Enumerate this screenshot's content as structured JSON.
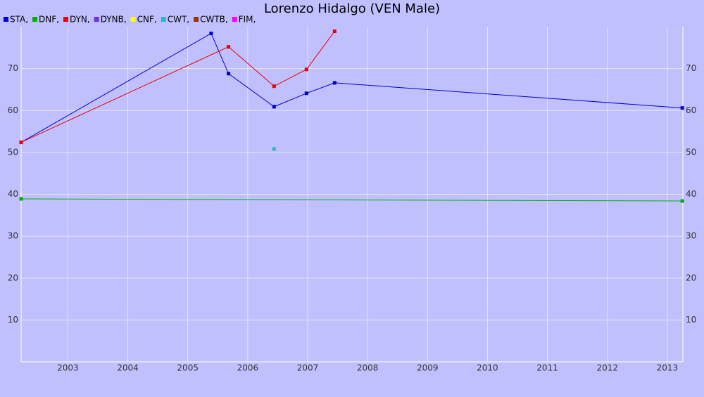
{
  "chart_data": {
    "type": "line",
    "title": "Lorenzo Hidalgo (VEN Male)",
    "series": [
      {
        "name": "STA,",
        "color": "#0000cc",
        "x": [
          2002.22,
          2005.39,
          2005.68,
          2006.44,
          2006.98,
          2007.45,
          2013.25
        ],
        "values": [
          52.4,
          78.4,
          68.8,
          60.9,
          64.1,
          66.6,
          60.6
        ]
      },
      {
        "name": "DNF,",
        "color": "#00b000",
        "x": [
          2002.22,
          2013.25
        ],
        "values": [
          38.9,
          38.4
        ]
      },
      {
        "name": "DYN,",
        "color": "#ee0000",
        "x": [
          2002.22,
          2005.68,
          2006.44,
          2006.98,
          2007.45
        ],
        "values": [
          52.4,
          75.2,
          65.8,
          69.8,
          78.9
        ]
      },
      {
        "name": "DYNB,",
        "color": "#6633ee",
        "x": [],
        "values": []
      },
      {
        "name": "CNF,",
        "color": "#ffff00",
        "x": [],
        "values": []
      },
      {
        "name": "CWT,",
        "color": "#22bbcc",
        "x": [
          2006.44
        ],
        "values": [
          50.8
        ]
      },
      {
        "name": "CWTB,",
        "color": "#993300",
        "x": [],
        "values": []
      },
      {
        "name": "FIM,",
        "color": "#ff00ff",
        "x": [],
        "values": []
      }
    ],
    "xlim": [
      2002.22,
      2013.26
    ],
    "xticks": [
      2003,
      2004,
      2005,
      2006,
      2007,
      2008,
      2009,
      2010,
      2011,
      2012,
      2013
    ],
    "ylim": [
      0,
      80
    ],
    "yticks": [
      10,
      20,
      30,
      40,
      50,
      60,
      70
    ],
    "grid": true
  }
}
